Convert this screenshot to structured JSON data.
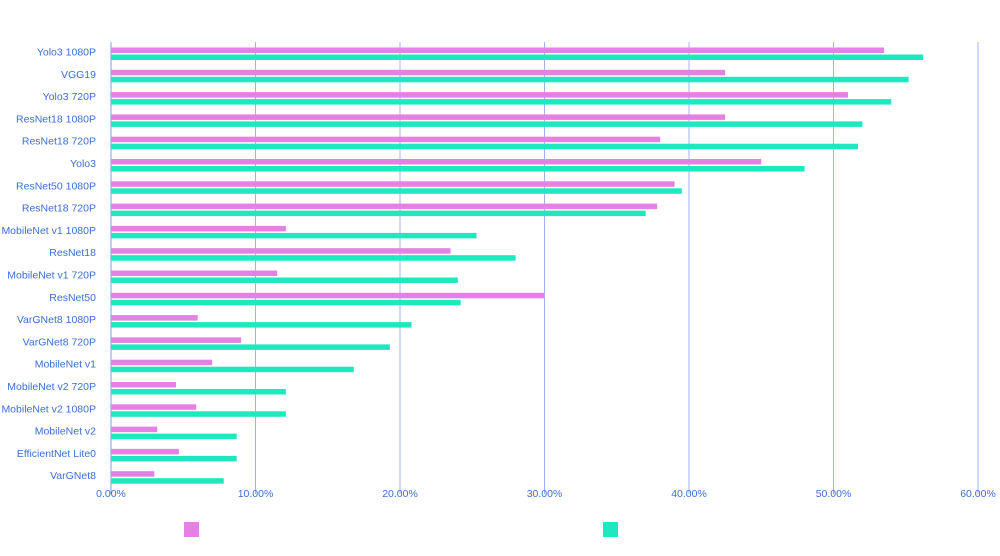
{
  "chart_data": {
    "type": "bar",
    "orientation": "horizontal",
    "title": "",
    "xlabel": "",
    "ylabel": "",
    "xlim": [
      0,
      0.6
    ],
    "x_ticks": [
      "0.00%",
      "10.00%",
      "20.00%",
      "30.00%",
      "40.00%",
      "50.00%",
      "60.00%"
    ],
    "grid": "vertical",
    "legend_position": "bottom",
    "categories": [
      "Yolo3 1080P",
      "VGG19",
      "Yolo3 720P",
      "ResNet18 1080P",
      "ResNet18 720P",
      "Yolo3",
      "ResNet50 1080P",
      "ResNet18 720P",
      "MobileNet v1 1080P",
      "ResNet18",
      "MobileNet v1 720P",
      "ResNet50",
      "VarGNet8 1080P",
      "VarGNet8 720P",
      "MobileNet v1",
      "MobileNet v2 720P",
      "MobileNet v2 1080P",
      "MobileNet v2",
      "EfficientNet Lite0",
      "VarGNet8"
    ],
    "series": [
      {
        "name": "",
        "color": "#e580e4",
        "values": [
          0.535,
          0.425,
          0.51,
          0.425,
          0.38,
          0.45,
          0.39,
          0.378,
          0.121,
          0.235,
          0.115,
          0.3,
          0.06,
          0.09,
          0.07,
          0.045,
          0.059,
          0.032,
          0.047,
          0.03
        ]
      },
      {
        "name": "",
        "color": "#1de9c0",
        "values": [
          0.562,
          0.552,
          0.54,
          0.52,
          0.517,
          0.48,
          0.395,
          0.37,
          0.253,
          0.28,
          0.24,
          0.242,
          0.208,
          0.193,
          0.168,
          0.121,
          0.121,
          0.087,
          0.087,
          0.078
        ]
      }
    ]
  }
}
